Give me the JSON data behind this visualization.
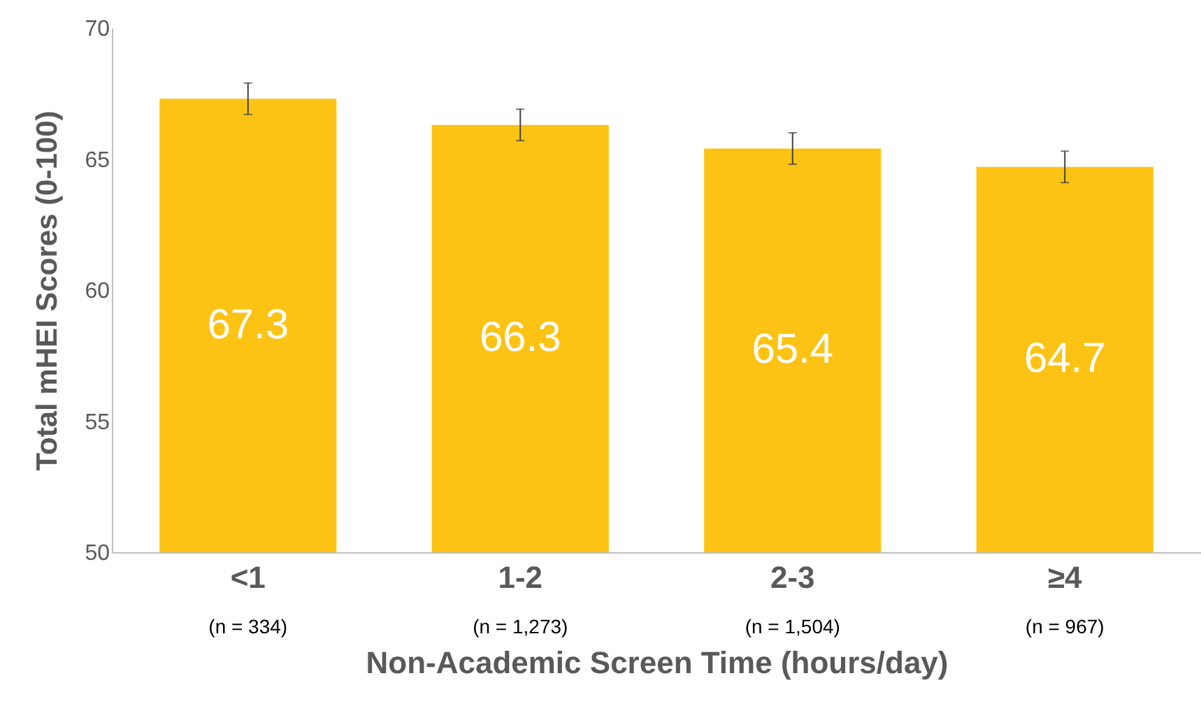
{
  "chart_data": {
    "type": "bar",
    "xlabel": "Non-Academic Screen Time (hours/day)",
    "ylabel": "Total mHEI Scores (0-100)",
    "categories": [
      "<1",
      "1-2",
      "2-3",
      "≥4"
    ],
    "values": [
      67.3,
      66.3,
      65.4,
      64.7
    ],
    "errors": [
      0.6,
      0.6,
      0.6,
      0.6
    ],
    "color": "#fdc314",
    "data_labels": true,
    "ylim": [
      50,
      70
    ],
    "yticks": [
      50,
      55,
      60,
      65,
      70
    ],
    "grid": false,
    "annotations": [
      "(n = 334)",
      "(n = 1,273)",
      "(n = 1,504)",
      "(n = 967)"
    ]
  }
}
